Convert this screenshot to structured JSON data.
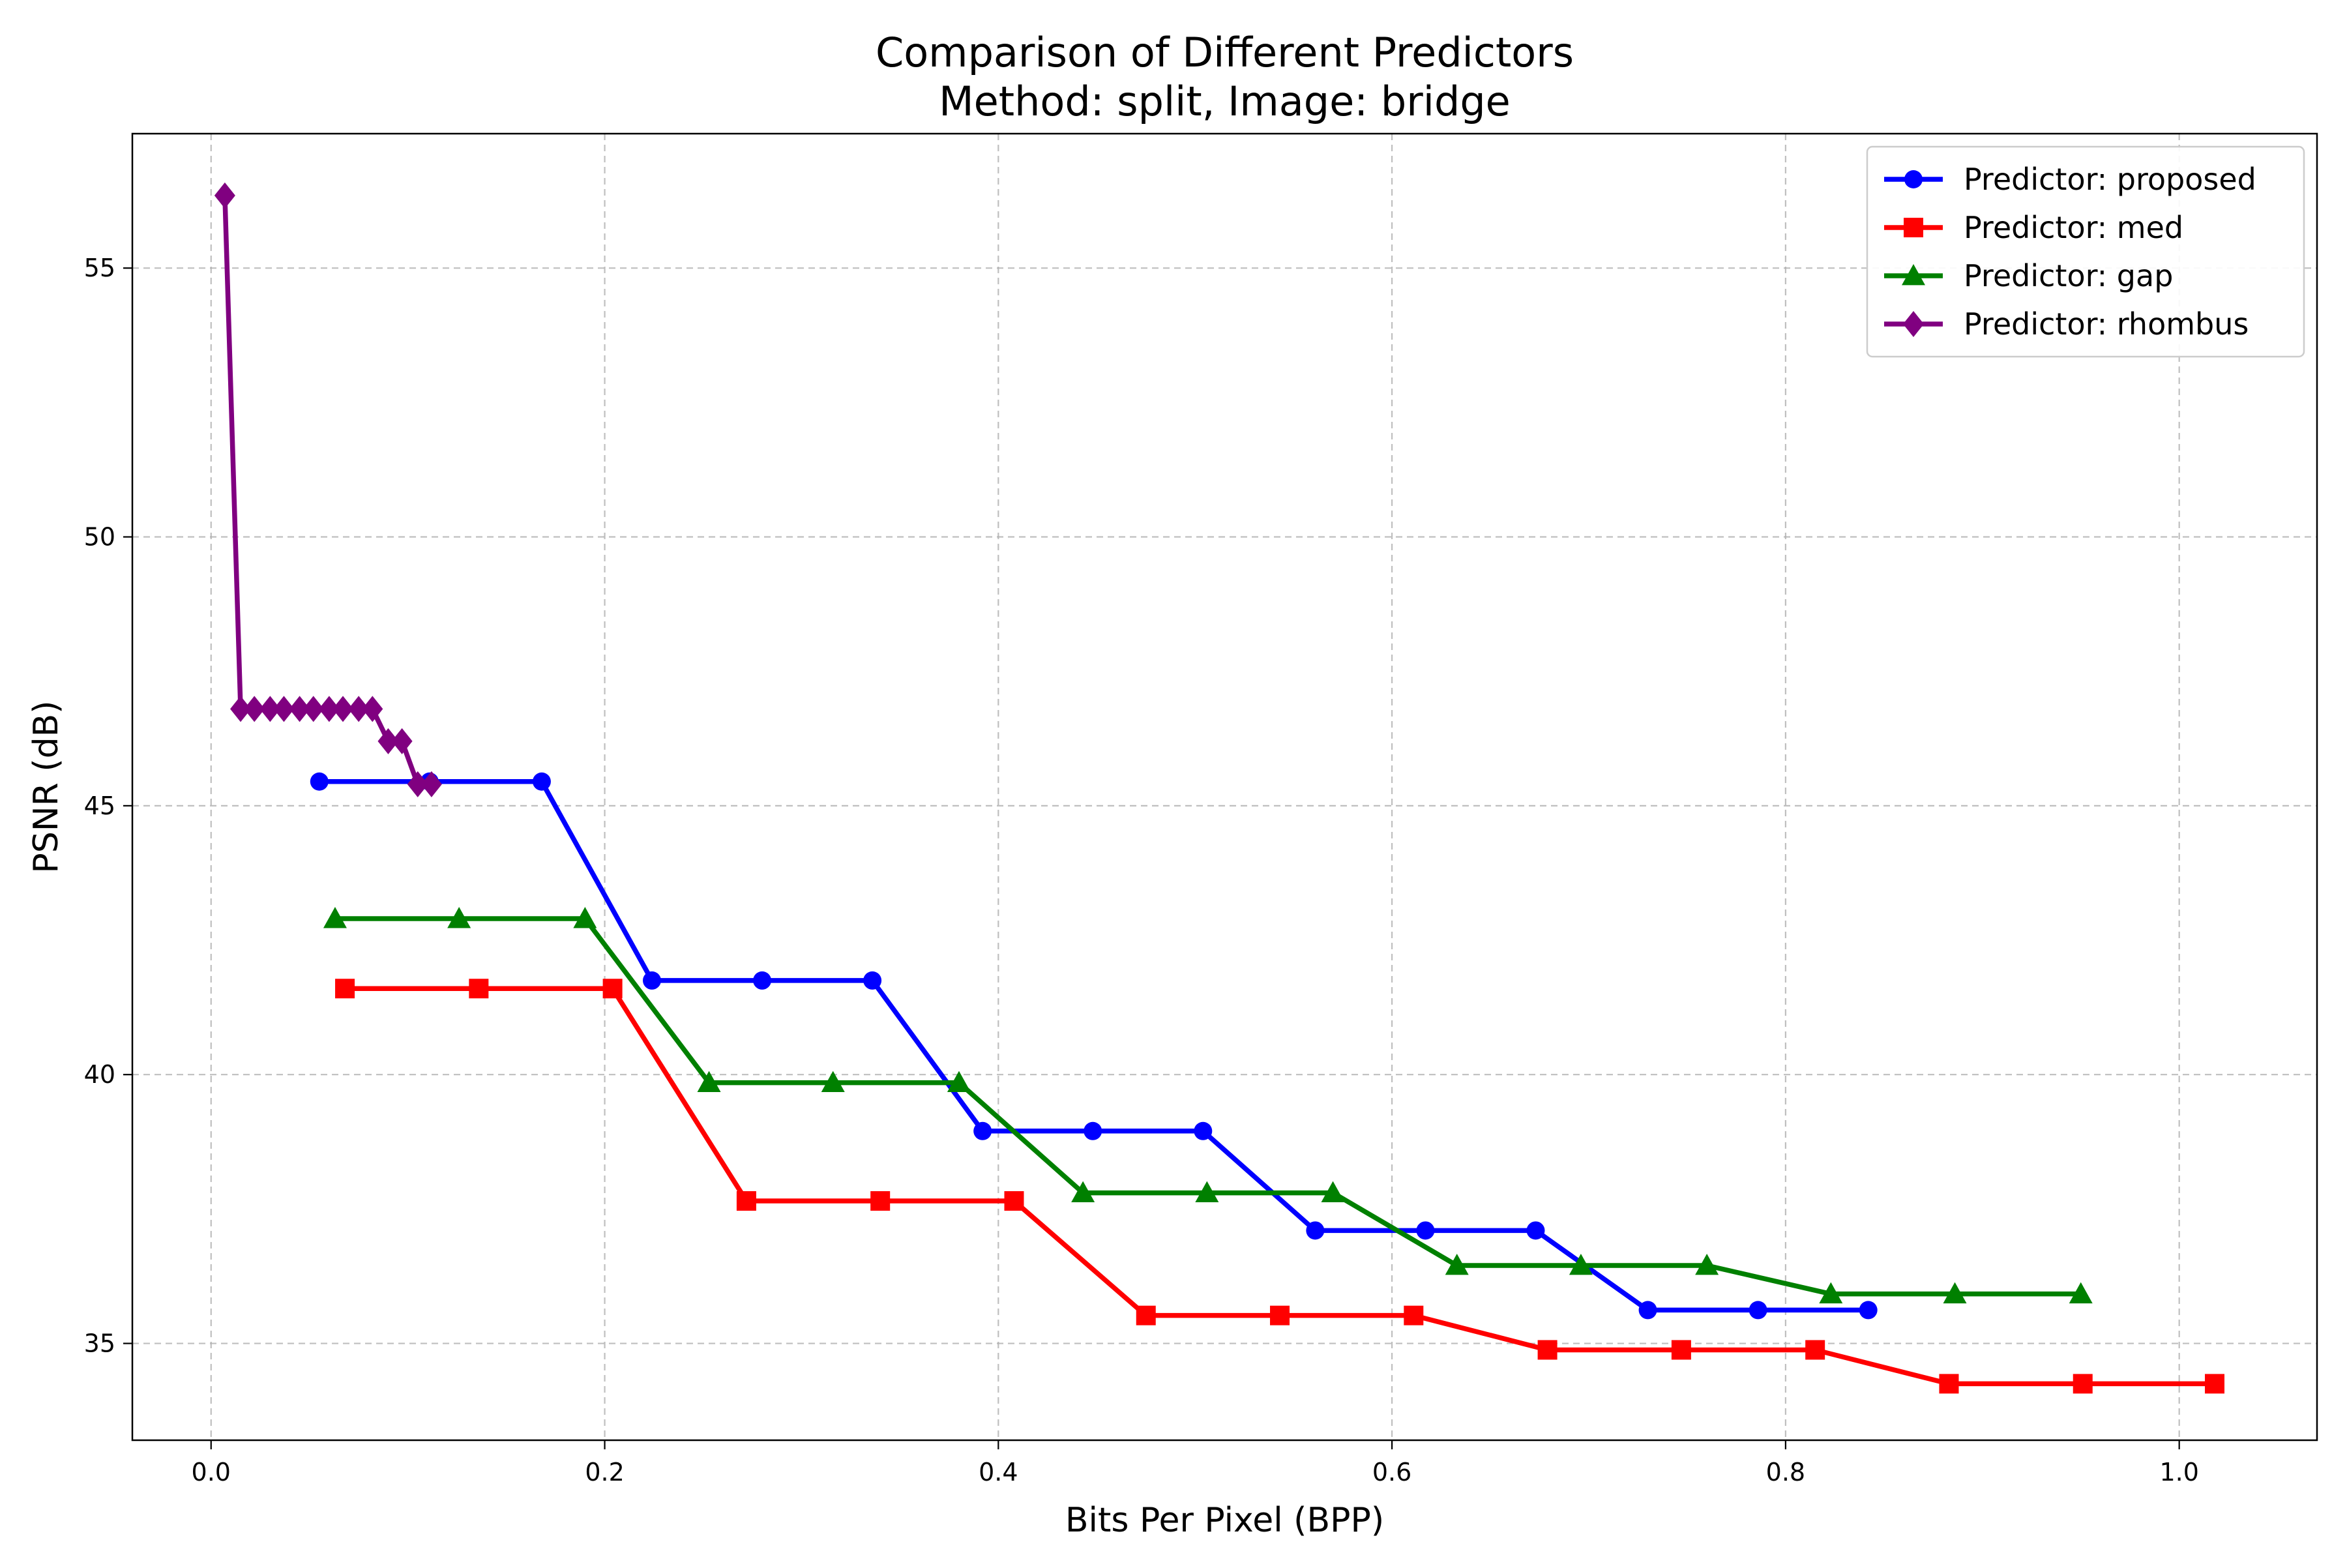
{
  "chart_data": {
    "type": "line",
    "title": "Comparison of Different Predictors",
    "subtitle": "Method: split, Image: bridge",
    "xlabel": "Bits Per Pixel (BPP)",
    "ylabel": "PSNR (dB)",
    "xlim": [
      -0.04,
      1.07
    ],
    "ylim": [
      33.2,
      57.5
    ],
    "xticks": [
      0.0,
      0.2,
      0.4,
      0.6,
      0.8,
      1.0
    ],
    "xtick_labels": [
      "0.0",
      "0.2",
      "0.4",
      "0.6",
      "0.8",
      "1.0"
    ],
    "yticks": [
      35,
      40,
      45,
      50,
      55
    ],
    "ytick_labels": [
      "35",
      "40",
      "45",
      "50",
      "55"
    ],
    "grid": true,
    "legend_position": "top-right",
    "series": [
      {
        "name": "Predictor: proposed",
        "color": "#0000ff",
        "marker": "circle",
        "x": [
          0.055,
          0.111,
          0.168,
          0.224,
          0.28,
          0.336,
          0.392,
          0.448,
          0.504,
          0.561,
          0.617,
          0.673,
          0.73,
          0.786,
          0.842
        ],
        "y": [
          45.45,
          45.45,
          45.45,
          41.75,
          41.75,
          41.75,
          38.95,
          38.95,
          38.95,
          37.1,
          37.1,
          37.1,
          35.62,
          35.62,
          35.62
        ]
      },
      {
        "name": "Predictor: med",
        "color": "#ff0000",
        "marker": "square",
        "x": [
          0.068,
          0.136,
          0.204,
          0.272,
          0.34,
          0.408,
          0.475,
          0.543,
          0.611,
          0.679,
          0.747,
          0.815,
          0.883,
          0.951,
          1.018
        ],
        "y": [
          41.6,
          41.6,
          41.6,
          37.65,
          37.65,
          37.65,
          35.52,
          35.52,
          35.52,
          34.88,
          34.88,
          34.88,
          34.25,
          34.25,
          34.25
        ]
      },
      {
        "name": "Predictor: gap",
        "color": "#008000",
        "marker": "triangle",
        "x": [
          0.063,
          0.126,
          0.19,
          0.253,
          0.316,
          0.38,
          0.443,
          0.506,
          0.57,
          0.633,
          0.696,
          0.76,
          0.823,
          0.886,
          0.95
        ],
        "y": [
          42.9,
          42.9,
          42.9,
          39.85,
          39.85,
          39.85,
          37.8,
          37.8,
          37.8,
          36.45,
          36.45,
          36.45,
          35.92,
          35.92,
          35.92
        ]
      },
      {
        "name": "Predictor: rhombus",
        "color": "#800080",
        "marker": "diamond",
        "x": [
          0.007,
          0.015,
          0.022,
          0.03,
          0.037,
          0.045,
          0.052,
          0.06,
          0.067,
          0.075,
          0.082,
          0.09,
          0.097,
          0.105,
          0.112
        ],
        "y": [
          56.35,
          46.8,
          46.8,
          46.8,
          46.8,
          46.8,
          46.8,
          46.8,
          46.8,
          46.8,
          46.8,
          46.2,
          46.2,
          45.4,
          45.4
        ]
      }
    ]
  }
}
